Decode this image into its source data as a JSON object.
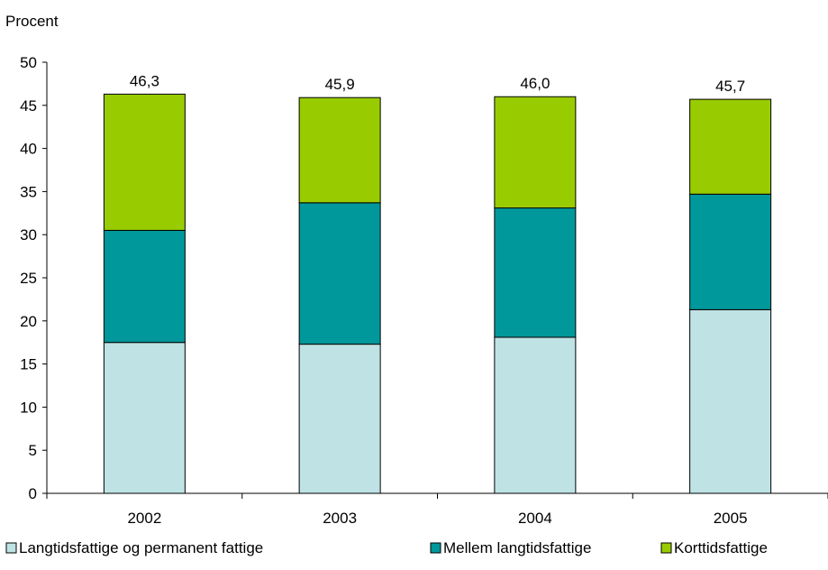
{
  "chart_data": {
    "type": "bar",
    "stacked": true,
    "ylabel": "Procent",
    "xlabel": "",
    "ylim": [
      0,
      50
    ],
    "yticks": [
      0,
      5,
      10,
      15,
      20,
      25,
      30,
      35,
      40,
      45,
      50
    ],
    "categories": [
      "2002",
      "2003",
      "2004",
      "2005"
    ],
    "series": [
      {
        "name": "Langtidsfattige og permanent fattige",
        "color": "#bfe3e5",
        "values": [
          17.5,
          17.3,
          18.1,
          21.3
        ]
      },
      {
        "name": "Mellem langtidsfattige",
        "color": "#00989a",
        "values": [
          13.0,
          16.4,
          15.0,
          13.4
        ]
      },
      {
        "name": "Korttidsfattige",
        "color": "#99cc00",
        "values": [
          15.8,
          12.2,
          12.9,
          11.0
        ]
      }
    ],
    "totals": [
      "46,3",
      "45,9",
      "46,0",
      "45,7"
    ],
    "grid": false,
    "legend_position": "bottom"
  }
}
